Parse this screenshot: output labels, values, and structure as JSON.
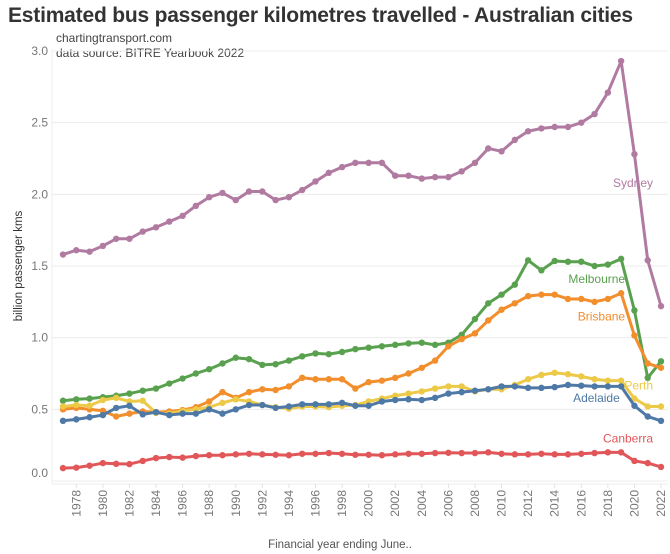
{
  "chart_data": {
    "type": "line",
    "title": "Estimated bus passenger kilometres travelled - Australian cities",
    "subtitle_lines": [
      "chartingtransport.com",
      "data source: BITRE Yearbook 2022"
    ],
    "xlabel": "Financial year ending June..",
    "ylabel": "billion passenger kms",
    "ylim": [
      0,
      3.0
    ],
    "yticks": [
      "0.0",
      "0.5",
      "1.0",
      "1.5",
      "2.0",
      "2.5",
      "3.0"
    ],
    "ytick_values": [
      0,
      0.5,
      1.0,
      1.5,
      2.0,
      2.5,
      3.0
    ],
    "xlim": [
      1977,
      2022
    ],
    "xticks": [
      "1978",
      "1980",
      "1982",
      "1984",
      "1986",
      "1988",
      "1990",
      "1992",
      "1994",
      "1996",
      "1998",
      "2000",
      "2002",
      "2004",
      "2006",
      "2008",
      "2010",
      "2012",
      "2014",
      "2016",
      "2018",
      "2020",
      "2022"
    ],
    "grid": true,
    "legend": "direct-labels-right",
    "x": [
      1977,
      1978,
      1979,
      1980,
      1981,
      1982,
      1983,
      1984,
      1985,
      1986,
      1987,
      1988,
      1989,
      1990,
      1991,
      1992,
      1993,
      1994,
      1995,
      1996,
      1997,
      1998,
      1999,
      2000,
      2001,
      2002,
      2003,
      2004,
      2005,
      2006,
      2007,
      2008,
      2009,
      2010,
      2011,
      2012,
      2013,
      2014,
      2015,
      2016,
      2017,
      2018,
      2019,
      2020,
      2021,
      2022
    ],
    "series": [
      {
        "name": "Sydney",
        "color": "#b07aa1",
        "label_at": [
          2021.4,
          2.05
        ],
        "values": [
          1.58,
          1.61,
          1.6,
          1.64,
          1.69,
          1.69,
          1.74,
          1.77,
          1.81,
          1.85,
          1.92,
          1.98,
          2.01,
          1.96,
          2.02,
          2.02,
          1.96,
          1.98,
          2.03,
          2.09,
          2.15,
          2.19,
          2.22,
          2.22,
          2.22,
          2.13,
          2.13,
          2.11,
          2.12,
          2.12,
          2.16,
          2.22,
          2.32,
          2.3,
          2.38,
          2.44,
          2.46,
          2.47,
          2.47,
          2.5,
          2.56,
          2.71,
          2.93,
          2.28,
          1.54,
          1.22
        ]
      },
      {
        "name": "Melbourne",
        "color": "#59a14f",
        "label_at": [
          2019.3,
          1.38
        ],
        "values": [
          0.56,
          0.57,
          0.575,
          0.585,
          0.595,
          0.61,
          0.63,
          0.645,
          0.68,
          0.715,
          0.75,
          0.78,
          0.82,
          0.86,
          0.85,
          0.81,
          0.815,
          0.84,
          0.87,
          0.89,
          0.885,
          0.9,
          0.92,
          0.93,
          0.94,
          0.95,
          0.96,
          0.965,
          0.95,
          0.965,
          1.02,
          1.13,
          1.24,
          1.3,
          1.37,
          1.54,
          1.47,
          1.535,
          1.53,
          1.53,
          1.5,
          1.51,
          1.55,
          1.19,
          0.72,
          0.835
        ]
      },
      {
        "name": "Brisbane",
        "color": "#f28e2b",
        "label_at": [
          2019.3,
          1.12
        ],
        "values": [
          0.5,
          0.51,
          0.5,
          0.49,
          0.45,
          0.47,
          0.485,
          0.48,
          0.485,
          0.495,
          0.515,
          0.555,
          0.62,
          0.58,
          0.62,
          0.64,
          0.635,
          0.66,
          0.72,
          0.71,
          0.71,
          0.71,
          0.645,
          0.69,
          0.7,
          0.72,
          0.75,
          0.79,
          0.84,
          0.94,
          0.99,
          1.03,
          1.12,
          1.195,
          1.24,
          1.29,
          1.3,
          1.3,
          1.27,
          1.27,
          1.25,
          1.27,
          1.31,
          1.015,
          0.82,
          0.79
        ]
      },
      {
        "name": "Perth",
        "color": "#edc948",
        "label_at": [
          2021.4,
          0.64
        ],
        "values": [
          0.52,
          0.53,
          0.525,
          0.565,
          0.58,
          0.555,
          0.56,
          0.475,
          0.47,
          0.49,
          0.5,
          0.515,
          0.545,
          0.57,
          0.555,
          0.53,
          0.515,
          0.505,
          0.52,
          0.52,
          0.515,
          0.525,
          0.53,
          0.555,
          0.575,
          0.595,
          0.61,
          0.625,
          0.645,
          0.66,
          0.66,
          0.625,
          0.64,
          0.64,
          0.67,
          0.71,
          0.74,
          0.755,
          0.745,
          0.73,
          0.71,
          0.7,
          0.7,
          0.575,
          0.52,
          0.52
        ]
      },
      {
        "name": "Adelaide",
        "color": "#4e79a7",
        "label_at": [
          2018.9,
          0.55
        ],
        "values": [
          0.42,
          0.43,
          0.445,
          0.46,
          0.51,
          0.525,
          0.465,
          0.48,
          0.46,
          0.47,
          0.47,
          0.5,
          0.47,
          0.5,
          0.53,
          0.53,
          0.51,
          0.52,
          0.535,
          0.535,
          0.535,
          0.545,
          0.525,
          0.525,
          0.555,
          0.565,
          0.57,
          0.565,
          0.58,
          0.61,
          0.62,
          0.63,
          0.64,
          0.66,
          0.66,
          0.65,
          0.65,
          0.655,
          0.67,
          0.665,
          0.66,
          0.66,
          0.66,
          0.525,
          0.45,
          0.42
        ]
      },
      {
        "name": "Canberra",
        "color": "#e15759",
        "label_at": [
          2021.4,
          0.27
        ],
        "values": [
          0.09,
          0.093,
          0.107,
          0.125,
          0.12,
          0.118,
          0.14,
          0.16,
          0.167,
          0.163,
          0.174,
          0.18,
          0.18,
          0.186,
          0.19,
          0.186,
          0.183,
          0.18,
          0.19,
          0.19,
          0.195,
          0.19,
          0.183,
          0.183,
          0.18,
          0.186,
          0.19,
          0.19,
          0.195,
          0.197,
          0.195,
          0.195,
          0.2,
          0.19,
          0.186,
          0.186,
          0.19,
          0.186,
          0.186,
          0.19,
          0.195,
          0.2,
          0.2,
          0.14,
          0.125,
          0.098
        ]
      }
    ]
  }
}
